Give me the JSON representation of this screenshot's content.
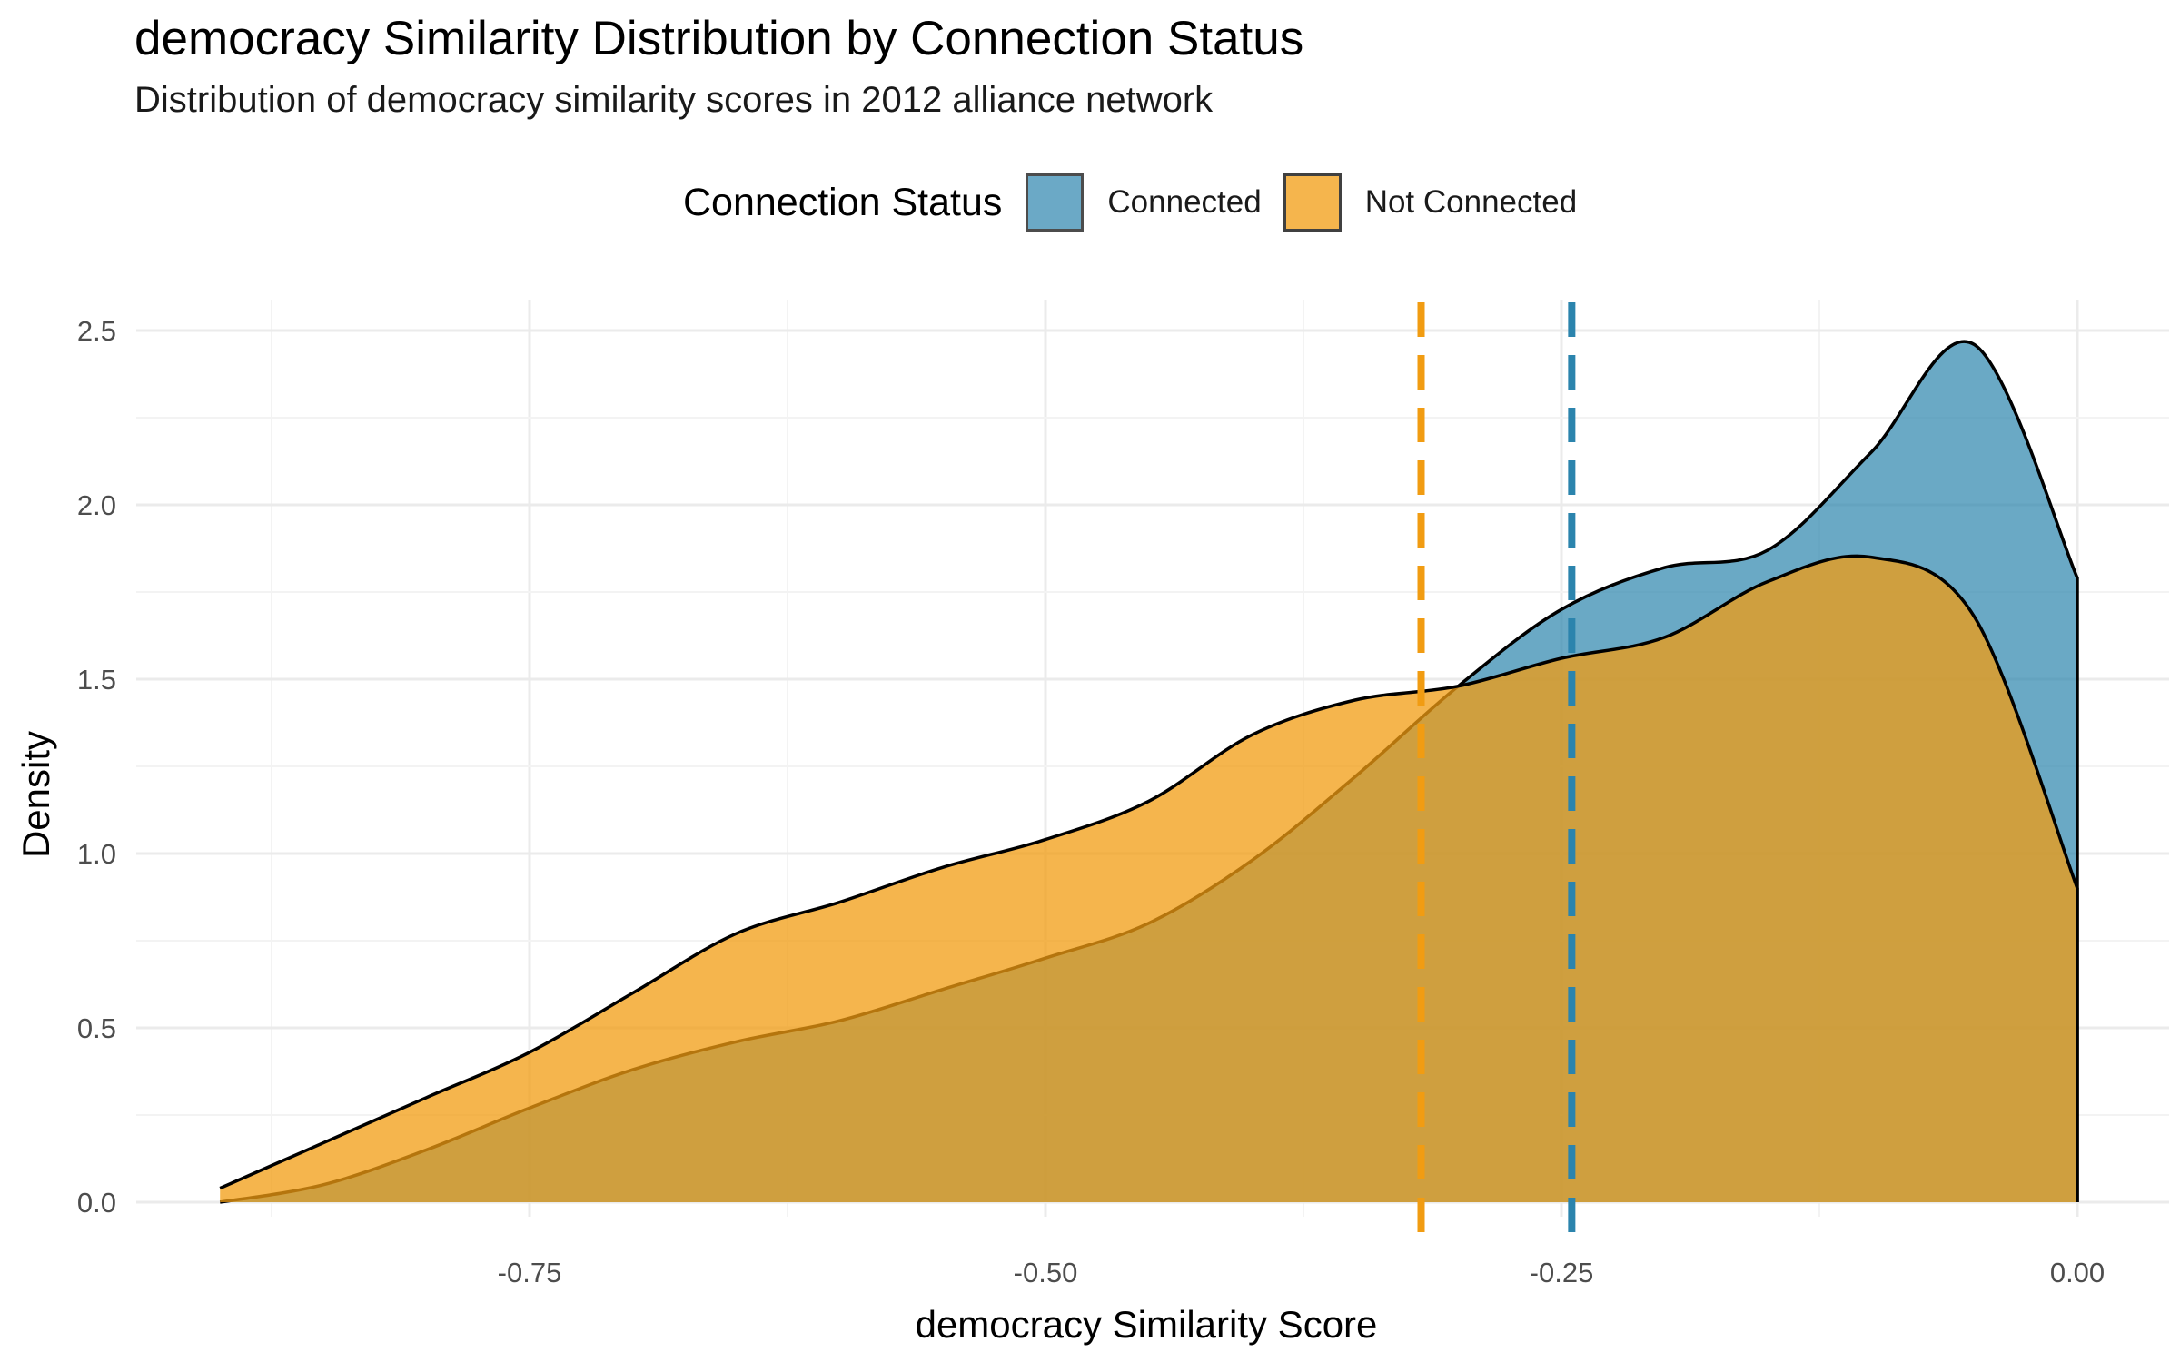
{
  "chart_data": {
    "type": "area",
    "title": "democracy Similarity Distribution by Connection Status",
    "subtitle": "Distribution of democracy similarity scores in 2012 alliance network",
    "xlabel": "democracy Similarity Score",
    "ylabel": "Density",
    "xlim": [
      -0.9,
      0.0
    ],
    "ylim": [
      0,
      2.5
    ],
    "x_ticks": [
      -0.75,
      -0.5,
      -0.25,
      0.0
    ],
    "x_tick_labels": [
      "-0.75",
      "-0.50",
      "-0.25",
      "0.00"
    ],
    "y_ticks": [
      0,
      0.5,
      1.0,
      1.5,
      2.0,
      2.5
    ],
    "y_tick_labels": [
      "0.0",
      "0.5",
      "1.0",
      "1.5",
      "2.0",
      "2.5"
    ],
    "grid": true,
    "legend": {
      "title": "Connection Status",
      "position": "top",
      "entries": [
        "Connected",
        "Not Connected"
      ]
    },
    "series": [
      {
        "name": "Connected",
        "color": "#2b84ad",
        "fill_opacity": 0.7,
        "mean": -0.245,
        "x": [
          -0.9,
          -0.85,
          -0.8,
          -0.75,
          -0.7,
          -0.65,
          -0.6,
          -0.55,
          -0.5,
          -0.45,
          -0.4,
          -0.35,
          -0.3,
          -0.25,
          -0.2,
          -0.15,
          -0.1,
          -0.05,
          0.0
        ],
        "y": [
          0.0,
          0.05,
          0.15,
          0.27,
          0.38,
          0.46,
          0.52,
          0.61,
          0.7,
          0.8,
          0.98,
          1.22,
          1.48,
          1.7,
          1.82,
          1.87,
          2.15,
          2.46,
          1.79
        ]
      },
      {
        "name": "Not Connected",
        "color": "#f19c12",
        "fill_opacity": 0.75,
        "mean": -0.318,
        "x": [
          -0.9,
          -0.85,
          -0.8,
          -0.75,
          -0.7,
          -0.65,
          -0.6,
          -0.55,
          -0.5,
          -0.45,
          -0.4,
          -0.35,
          -0.3,
          -0.25,
          -0.2,
          -0.15,
          -0.1,
          -0.05,
          0.0
        ],
        "y": [
          0.04,
          0.17,
          0.3,
          0.43,
          0.6,
          0.77,
          0.86,
          0.96,
          1.04,
          1.15,
          1.34,
          1.44,
          1.48,
          1.56,
          1.62,
          1.78,
          1.85,
          1.68,
          0.9
        ]
      }
    ]
  }
}
